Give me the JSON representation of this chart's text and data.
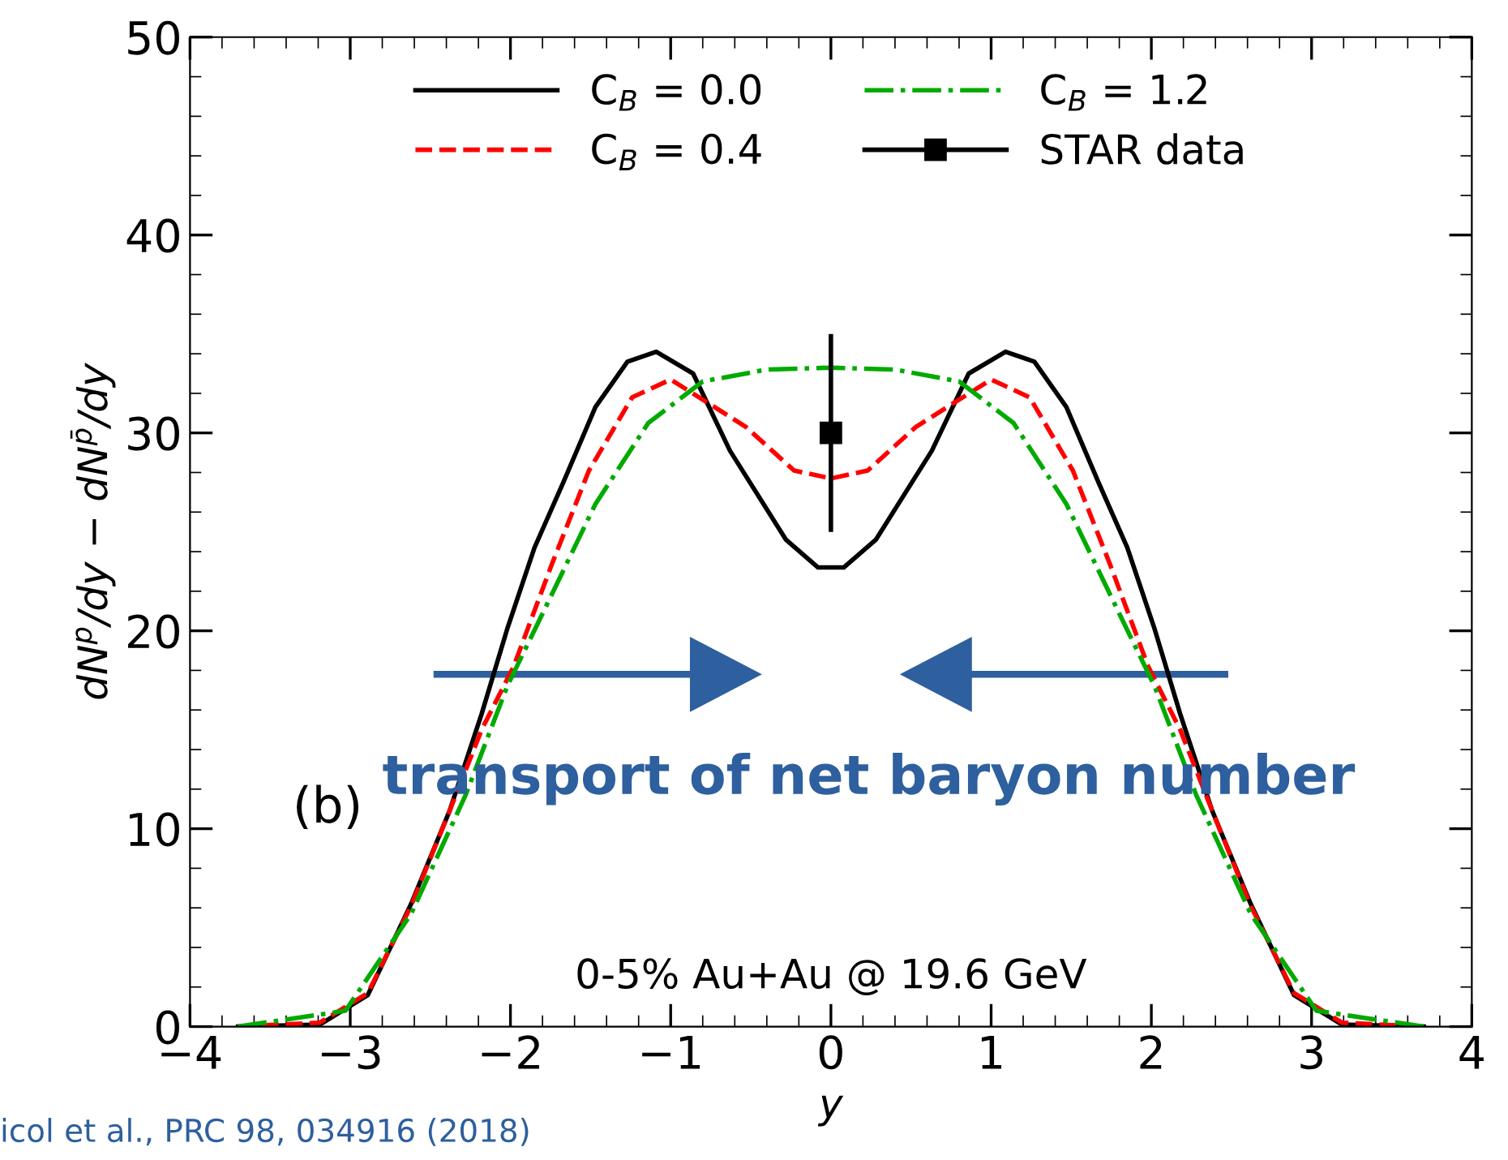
{
  "chart_data": {
    "type": "line",
    "xlabel": "y",
    "ylabel": "dN$^{p}$/dy − dN$^{p̄}$/dy",
    "xlim": [
      -4,
      4
    ],
    "ylim": [
      0,
      50
    ],
    "xticks": [
      {
        "value": -4,
        "label": "−4"
      },
      {
        "value": -3,
        "label": "−3"
      },
      {
        "value": -2,
        "label": "−2"
      },
      {
        "value": -1,
        "label": "−1"
      },
      0,
      1,
      2,
      3,
      4
    ],
    "yticks": [
      0,
      10,
      20,
      30,
      40,
      50
    ],
    "grid": false,
    "legend": "top",
    "marker": "none",
    "series": [
      {
        "name": "C$_{B}$ = 0.0",
        "color": "#000000",
        "line_style": "solid",
        "x": [
          -3.7,
          -3.19,
          -2.89,
          -2.62,
          -2.38,
          -2.18,
          -2.02,
          -1.85,
          -1.67,
          -1.47,
          -1.27,
          -1.09,
          -0.86,
          -0.63,
          -0.28,
          -0.08,
          0,
          0.08,
          0.28,
          0.63,
          0.86,
          1.09,
          1.27,
          1.47,
          1.67,
          1.85,
          2.02,
          2.18,
          2.38,
          2.62,
          2.89,
          3.19,
          3.7
        ],
        "values": [
          0,
          0.1,
          1.6,
          6.2,
          10.9,
          15.8,
          20.1,
          24.2,
          27.5,
          31.3,
          33.6,
          34.1,
          33.0,
          29.1,
          24.6,
          23.2,
          23.2,
          23.2,
          24.6,
          29.1,
          33.0,
          34.1,
          33.6,
          31.3,
          27.5,
          24.2,
          20.1,
          15.8,
          10.9,
          6.2,
          1.6,
          0.1,
          0
        ]
      },
      {
        "name": "C$_{B}$ = 0.4",
        "color": "#ff0000",
        "line_style": "dashed",
        "x": [
          -3.7,
          -3.19,
          -2.89,
          -2.62,
          -2.38,
          -2.18,
          -1.98,
          -1.74,
          -1.51,
          -1.24,
          -1.0,
          -0.53,
          -0.23,
          0,
          0.23,
          0.53,
          1.0,
          1.24,
          1.51,
          1.74,
          1.98,
          2.18,
          2.38,
          2.62,
          2.89,
          3.19,
          3.7
        ],
        "values": [
          0,
          0.2,
          1.7,
          6.1,
          10.9,
          15.0,
          18.2,
          23.4,
          28.1,
          31.8,
          32.7,
          30.3,
          28.1,
          27.7,
          28.1,
          30.3,
          32.7,
          31.8,
          28.1,
          23.4,
          18.2,
          15.0,
          10.9,
          6.1,
          1.7,
          0.2,
          0
        ]
      },
      {
        "name": "C$_{B}$ = 1.2",
        "color": "#00aa00",
        "line_style": "dashdot",
        "x": [
          -3.7,
          -3.03,
          -2.62,
          -2.28,
          -2.02,
          -1.81,
          -1.47,
          -1.14,
          -0.8,
          -0.4,
          0,
          0.4,
          0.8,
          1.14,
          1.47,
          1.81,
          2.02,
          2.28,
          2.62,
          3.03,
          3.7
        ],
        "values": [
          0,
          0.8,
          5.7,
          11.7,
          17.2,
          20.7,
          26.4,
          30.5,
          32.6,
          33.2,
          33.3,
          33.2,
          32.6,
          30.5,
          26.4,
          20.7,
          17.2,
          11.7,
          5.7,
          0.8,
          0
        ]
      },
      {
        "name": "STAR data",
        "type": "scatter",
        "marker": "square",
        "color": "#000000",
        "x": [
          0
        ],
        "values": [
          30
        ],
        "errors": [
          5
        ]
      }
    ],
    "annotations": [
      "(b)",
      "transport of net baryon number",
      "0-5% Au+Au @ 19.6 GeV",
      "icol et al., PRC 98, 034916 (2018)"
    ]
  }
}
